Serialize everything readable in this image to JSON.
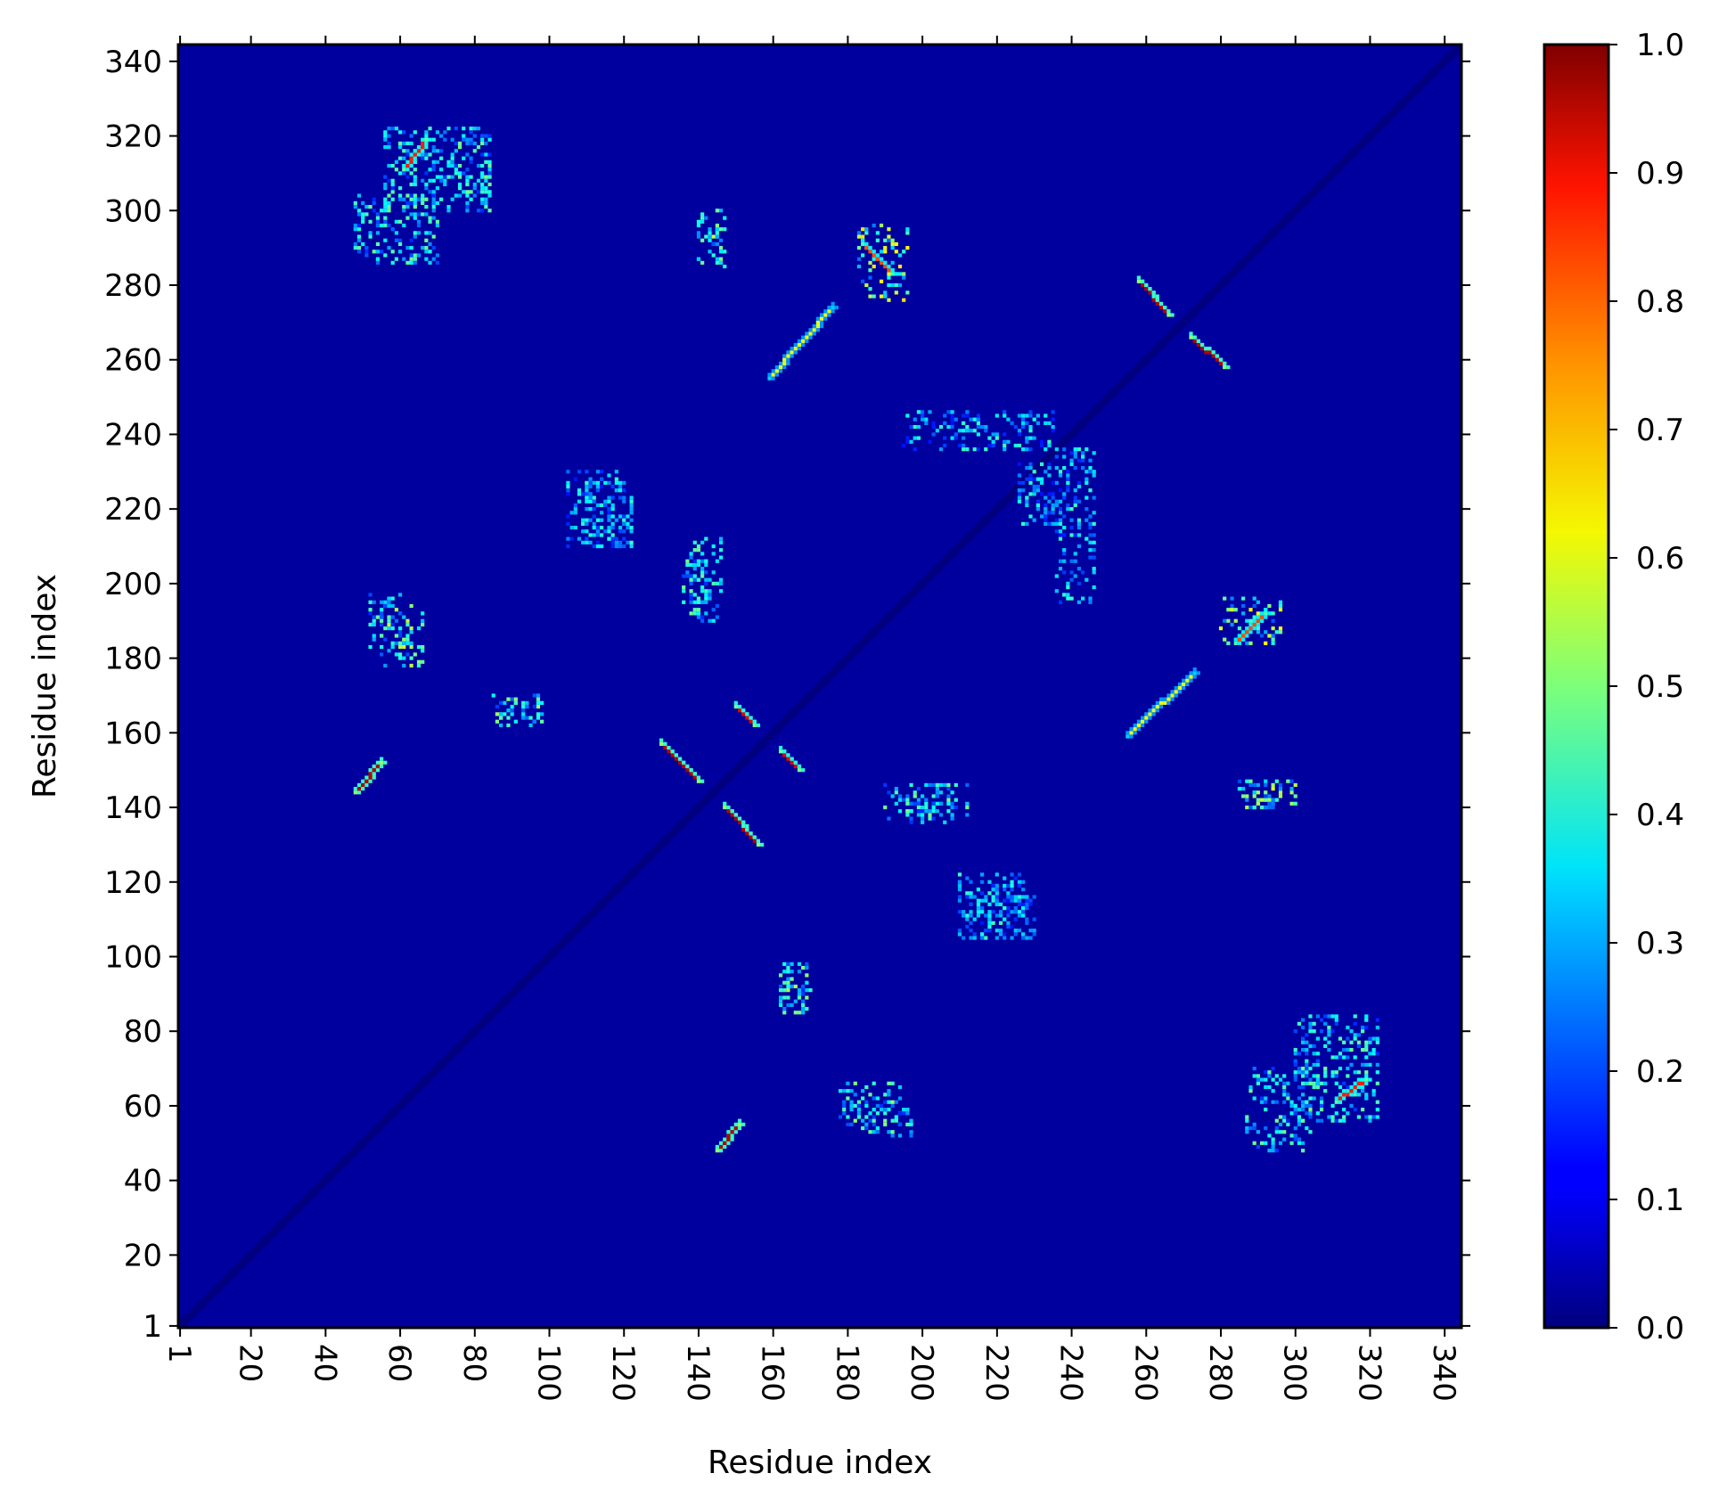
{
  "chart_data": {
    "type": "heatmap",
    "title": "",
    "xlabel": "Residue index",
    "ylabel": "Residue index",
    "x_range": [
      1,
      344
    ],
    "y_range": [
      1,
      344
    ],
    "x_ticks": [
      1,
      20,
      40,
      60,
      80,
      100,
      120,
      140,
      160,
      180,
      200,
      220,
      240,
      260,
      280,
      300,
      320,
      340
    ],
    "y_ticks": [
      1,
      20,
      40,
      60,
      80,
      100,
      120,
      140,
      160,
      180,
      200,
      220,
      240,
      260,
      280,
      300,
      320,
      340
    ],
    "x_tick_rotation": "vertical",
    "colormap": "jet",
    "colorbar": {
      "range": [
        0.0,
        1.0
      ],
      "ticks": [
        "0.0",
        "0.1",
        "0.2",
        "0.3",
        "0.4",
        "0.5",
        "0.6",
        "0.7",
        "0.8",
        "0.9",
        "1.0"
      ],
      "placement": "right"
    },
    "background_value": 0.03,
    "diagonal_value": 0.0,
    "contact_segments": [
      {
        "x": [
          48,
          55
        ],
        "y": [
          144,
          152
        ],
        "value": 0.95
      },
      {
        "x": [
          145,
          151
        ],
        "y": [
          48,
          55
        ],
        "value": 0.95
      },
      {
        "x": [
          130,
          140
        ],
        "y": [
          157,
          147
        ],
        "value": 0.95
      },
      {
        "x": [
          147,
          156
        ],
        "y": [
          140,
          130
        ],
        "value": 0.95
      },
      {
        "x": [
          150,
          155
        ],
        "y": [
          167,
          162
        ],
        "value": 0.9
      },
      {
        "x": [
          162,
          167
        ],
        "y": [
          155,
          150
        ],
        "value": 0.9
      },
      {
        "x": [
          159,
          176
        ],
        "y": [
          255,
          274
        ],
        "value": 0.6
      },
      {
        "x": [
          255,
          273
        ],
        "y": [
          159,
          176
        ],
        "value": 0.6
      },
      {
        "x": [
          258,
          266
        ],
        "y": [
          281,
          272
        ],
        "value": 0.95
      },
      {
        "x": [
          272,
          281
        ],
        "y": [
          266,
          258
        ],
        "value": 0.95
      },
      {
        "x": [
          61,
          67
        ],
        "y": [
          311,
          319
        ],
        "value": 0.85
      },
      {
        "x": [
          311,
          319
        ],
        "y": [
          61,
          67
        ],
        "value": 0.85
      },
      {
        "x": [
          184,
          192
        ],
        "y": [
          291,
          283
        ],
        "value": 0.8
      },
      {
        "x": [
          284,
          292
        ],
        "y": [
          184,
          192
        ],
        "value": 0.8
      }
    ],
    "contact_clusters": [
      {
        "x": [
          55,
          66
        ],
        "y": [
          178,
          194
        ],
        "value": 0.55
      },
      {
        "x": [
          178,
          194
        ],
        "y": [
          55,
          66
        ],
        "value": 0.5
      },
      {
        "x": [
          140,
          147
        ],
        "y": [
          285,
          300
        ],
        "value": 0.55
      },
      {
        "x": [
          285,
          300
        ],
        "y": [
          140,
          147
        ],
        "value": 0.55
      },
      {
        "x": [
          183,
          196
        ],
        "y": [
          276,
          296
        ],
        "value": 0.6
      },
      {
        "x": [
          280,
          296
        ],
        "y": [
          184,
          196
        ],
        "value": 0.6
      },
      {
        "x": [
          48,
          70
        ],
        "y": [
          286,
          304
        ],
        "value": 0.45
      },
      {
        "x": [
          287,
          304
        ],
        "y": [
          48,
          70
        ],
        "value": 0.45
      },
      {
        "x": [
          138,
          146
        ],
        "y": [
          190,
          212
        ],
        "value": 0.45
      },
      {
        "x": [
          190,
          212
        ],
        "y": [
          137,
          146
        ],
        "value": 0.45
      },
      {
        "x": [
          195,
          236
        ],
        "y": [
          236,
          246
        ],
        "value": 0.4
      },
      {
        "x": [
          236,
          246
        ],
        "y": [
          195,
          236
        ],
        "value": 0.4
      },
      {
        "x": [
          286,
          296
        ],
        "y": [
          140,
          146
        ],
        "value": 0.5
      },
      {
        "x": [
          140,
          146
        ],
        "y": [
          286,
          296
        ],
        "value": 0.5
      },
      {
        "x": [
          210,
          230
        ],
        "y": [
          105,
          120
        ],
        "value": 0.4
      },
      {
        "x": [
          105,
          120
        ],
        "y": [
          210,
          230
        ],
        "value": 0.4
      },
      {
        "x": [
          163,
          170
        ],
        "y": [
          85,
          98
        ],
        "value": 0.5
      },
      {
        "x": [
          85,
          98
        ],
        "y": [
          163,
          170
        ],
        "value": 0.5
      },
      {
        "x": [
          110,
          122
        ],
        "y": [
          210,
          228
        ],
        "value": 0.4
      },
      {
        "x": [
          210,
          228
        ],
        "y": [
          110,
          122
        ],
        "value": 0.4
      },
      {
        "x": [
          183,
          197
        ],
        "y": [
          52,
          60
        ],
        "value": 0.45
      },
      {
        "x": [
          52,
          60
        ],
        "y": [
          183,
          197
        ],
        "value": 0.45
      },
      {
        "x": [
          300,
          322
        ],
        "y": [
          56,
          84
        ],
        "value": 0.45
      },
      {
        "x": [
          56,
          84
        ],
        "y": [
          300,
          322
        ],
        "value": 0.45
      },
      {
        "x": [
          87,
          96
        ],
        "y": [
          162,
          168
        ],
        "value": 0.45
      },
      {
        "x": [
          162,
          168
        ],
        "y": [
          87,
          96
        ],
        "value": 0.45
      },
      {
        "x": [
          226,
          238
        ],
        "y": [
          216,
          232
        ],
        "value": 0.4
      },
      {
        "x": [
          194,
          208
        ],
        "y": [
          136,
          142
        ],
        "value": 0.45
      },
      {
        "x": [
          136,
          142
        ],
        "y": [
          194,
          208
        ],
        "value": 0.45
      }
    ]
  }
}
